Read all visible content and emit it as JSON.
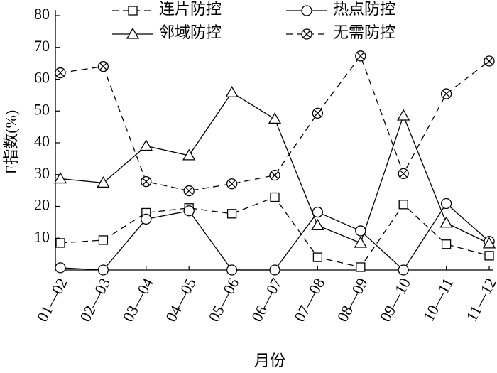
{
  "chart_data": {
    "type": "line",
    "y_label": "E指数(%)",
    "x_label": "月份",
    "categories": [
      "01—02",
      "02—03",
      "03—04",
      "04—05",
      "05—06",
      "06—07",
      "07—08",
      "08—09",
      "09—10",
      "10—11",
      "11—12"
    ],
    "series": [
      {
        "name": "连片防控",
        "color": "#000000",
        "marker": "square",
        "dashed": true,
        "values": [
          8.5,
          9.4,
          18,
          19.5,
          17.7,
          22.9,
          4,
          0.9,
          20.6,
          8.1,
          4.5
        ]
      },
      {
        "name": "热点防控",
        "color": "#000000",
        "marker": "circle",
        "dashed": false,
        "values": [
          0.7,
          0,
          16,
          18.6,
          0,
          0,
          18.2,
          12.3,
          0,
          20.9,
          9
        ]
      },
      {
        "name": "邻域防控",
        "color": "#000000",
        "marker": "triangle",
        "dashed": false,
        "values": [
          28.7,
          27.4,
          39,
          36,
          55.8,
          47.5,
          14,
          8.5,
          48.5,
          14.8,
          8.3
        ]
      },
      {
        "name": "无需防控",
        "color": "#000000",
        "marker": "crossed-circle",
        "dashed": true,
        "values": [
          62,
          64,
          27.8,
          24.9,
          27.1,
          29.8,
          49.3,
          67.3,
          30.3,
          55.4,
          65.7
        ]
      }
    ],
    "ylim": [
      0,
      80
    ],
    "yticks": [
      10,
      20,
      30,
      40,
      50,
      60,
      70,
      80
    ]
  }
}
